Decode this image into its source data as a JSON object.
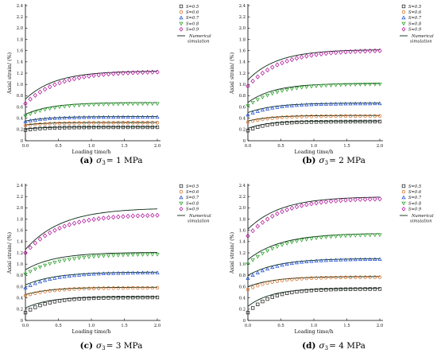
{
  "chart_data": [
    {
      "type": "scatter",
      "caption": {
        "letter": "(a)",
        "symbol": "σ",
        "subscript": "3",
        "equals": "= 1 MPa"
      },
      "xlabel": "Loading time/h",
      "ylabel": "Axial strain/ (%)",
      "xlim": [
        0,
        2.0
      ],
      "ylim": [
        0,
        2.4
      ],
      "xticks": [
        "0.0",
        "0.5",
        "1.0",
        "1.5",
        "2.0"
      ],
      "yticks": [
        "0",
        "0.2",
        "0.4",
        "0.6",
        "0.8",
        "1.0",
        "1.2",
        "1.4",
        "1.6",
        "1.8",
        "2.0",
        "2.2",
        "2.4"
      ],
      "legend": {
        "placement": "top-right",
        "sim_label_line1": "Numerical",
        "sim_label_line2": "simulation"
      },
      "series": [
        {
          "name": "S=0.5",
          "marker": "square",
          "color": "#222222",
          "experimental": {
            "start": 0.19,
            "end": 0.24,
            "tau": 0.3
          },
          "simulation": {
            "start": 0.21,
            "end": 0.245,
            "tau": 0.3
          }
        },
        {
          "name": "S=0.6",
          "marker": "circle",
          "color": "#d2691e",
          "experimental": {
            "start": 0.27,
            "end": 0.32,
            "tau": 0.3
          },
          "simulation": {
            "start": 0.28,
            "end": 0.325,
            "tau": 0.3
          }
        },
        {
          "name": "S=0.7",
          "marker": "triangle-up",
          "color": "#2050d0",
          "experimental": {
            "start": 0.34,
            "end": 0.42,
            "tau": 0.35
          },
          "simulation": {
            "start": 0.35,
            "end": 0.43,
            "tau": 0.35
          }
        },
        {
          "name": "S=0.8",
          "marker": "triangle-down",
          "color": "#28a028",
          "experimental": {
            "start": 0.44,
            "end": 0.66,
            "tau": 0.4
          },
          "simulation": {
            "start": 0.47,
            "end": 0.68,
            "tau": 0.4
          }
        },
        {
          "name": "S=0.9",
          "marker": "diamond",
          "color": "#b0139a",
          "experimental": {
            "start": 0.66,
            "end": 1.23,
            "tau": 0.5
          },
          "simulation": {
            "start": 0.74,
            "end": 1.24,
            "tau": 0.45
          }
        }
      ]
    },
    {
      "type": "scatter",
      "caption": {
        "letter": "(b)",
        "symbol": "σ",
        "subscript": "3",
        "equals": "= 2 MPa"
      },
      "xlabel": "Loading time/h",
      "ylabel": "Axial strain/ (%)",
      "xlim": [
        0,
        2.0
      ],
      "ylim": [
        0,
        2.4
      ],
      "xticks": [
        "0.0",
        "0.5",
        "1.0",
        "1.5",
        "2.0"
      ],
      "yticks": [
        "0",
        "0.2",
        "0.4",
        "0.6",
        "0.8",
        "1.0",
        "1.2",
        "1.4",
        "1.6",
        "1.8",
        "2.0",
        "2.2",
        "2.4"
      ],
      "legend": {
        "placement": "top-right",
        "sim_label_line1": "Numerical",
        "sim_label_line2": "simulation"
      },
      "series": [
        {
          "name": "S=0.5",
          "marker": "square",
          "color": "#222222",
          "experimental": {
            "start": 0.18,
            "end": 0.34,
            "tau": 0.3
          },
          "simulation": {
            "start": 0.22,
            "end": 0.35,
            "tau": 0.3
          }
        },
        {
          "name": "S=0.6",
          "marker": "circle",
          "color": "#d2691e",
          "experimental": {
            "start": 0.33,
            "end": 0.44,
            "tau": 0.35
          },
          "simulation": {
            "start": 0.35,
            "end": 0.45,
            "tau": 0.35
          }
        },
        {
          "name": "S=0.7",
          "marker": "triangle-up",
          "color": "#2050d0",
          "experimental": {
            "start": 0.46,
            "end": 0.66,
            "tau": 0.4
          },
          "simulation": {
            "start": 0.5,
            "end": 0.67,
            "tau": 0.4
          }
        },
        {
          "name": "S=0.8",
          "marker": "triangle-down",
          "color": "#28a028",
          "experimental": {
            "start": 0.62,
            "end": 1.01,
            "tau": 0.45
          },
          "simulation": {
            "start": 0.68,
            "end": 1.02,
            "tau": 0.4
          }
        },
        {
          "name": "S=0.9",
          "marker": "diamond",
          "color": "#b0139a",
          "experimental": {
            "start": 0.97,
            "end": 1.61,
            "tau": 0.5
          },
          "simulation": {
            "start": 1.08,
            "end": 1.62,
            "tau": 0.45
          }
        }
      ]
    },
    {
      "type": "scatter",
      "caption": {
        "letter": "(c)",
        "symbol": "σ",
        "subscript": "3",
        "equals": "= 3 MPa"
      },
      "xlabel": "Loading time/h",
      "ylabel": "Axial strain/ (%)",
      "xlim": [
        0,
        2.0
      ],
      "ylim": [
        0,
        2.4
      ],
      "xticks": [
        "0.0",
        "0.5",
        "1.0",
        "1.5",
        "2.0"
      ],
      "yticks": [
        "0",
        "0.2",
        "0.4",
        "0.6",
        "0.8",
        "1.0",
        "1.2",
        "1.4",
        "1.6",
        "1.8",
        "2.0",
        "2.2",
        "2.4"
      ],
      "legend": {
        "placement": "top-right",
        "sim_label_line1": "Numerical",
        "sim_label_line2": "simulation"
      },
      "series": [
        {
          "name": "S=0.5",
          "marker": "square",
          "color": "#222222",
          "experimental": {
            "start": 0.14,
            "end": 0.41,
            "tau": 0.35
          },
          "simulation": {
            "start": 0.22,
            "end": 0.42,
            "tau": 0.35
          }
        },
        {
          "name": "S=0.6",
          "marker": "circle",
          "color": "#d2691e",
          "experimental": {
            "start": 0.44,
            "end": 0.58,
            "tau": 0.4
          },
          "simulation": {
            "start": 0.46,
            "end": 0.59,
            "tau": 0.4
          }
        },
        {
          "name": "S=0.7",
          "marker": "triangle-up",
          "color": "#2050d0",
          "experimental": {
            "start": 0.58,
            "end": 0.85,
            "tau": 0.45
          },
          "simulation": {
            "start": 0.63,
            "end": 0.86,
            "tau": 0.45
          }
        },
        {
          "name": "S=0.8",
          "marker": "triangle-down",
          "color": "#28a028",
          "experimental": {
            "start": 0.82,
            "end": 1.18,
            "tau": 0.5
          },
          "simulation": {
            "start": 0.9,
            "end": 1.21,
            "tau": 0.45
          }
        },
        {
          "name": "S=0.9",
          "marker": "diamond",
          "color": "#b0139a",
          "experimental": {
            "start": 1.2,
            "end": 1.88,
            "tau": 0.5
          },
          "simulation": {
            "start": 1.26,
            "end": 2.0,
            "tau": 0.55
          }
        }
      ]
    },
    {
      "type": "scatter",
      "caption": {
        "letter": "(d)",
        "symbol": "σ",
        "subscript": "3",
        "equals": "= 4 MPa"
      },
      "xlabel": "Loading time/h",
      "ylabel": "Axial strain/ (%)",
      "xlim": [
        0,
        2.0
      ],
      "ylim": [
        0,
        2.4
      ],
      "xticks": [
        "0.0",
        "0.5",
        "1.0",
        "1.5",
        "2.0"
      ],
      "yticks": [
        "0",
        "0.2",
        "0.4",
        "0.6",
        "0.8",
        "1.0",
        "1.2",
        "1.4",
        "1.6",
        "1.8",
        "2.0",
        "2.2",
        "2.4"
      ],
      "legend": {
        "placement": "top-right",
        "sim_label_line1": "Numerical",
        "sim_label_line2": "simulation"
      },
      "series": [
        {
          "name": "S=0.5",
          "marker": "square",
          "color": "#222222",
          "experimental": {
            "start": 0.14,
            "end": 0.56,
            "tau": 0.35
          },
          "simulation": {
            "start": 0.25,
            "end": 0.57,
            "tau": 0.35
          }
        },
        {
          "name": "S=0.6",
          "marker": "circle",
          "color": "#d2691e",
          "experimental": {
            "start": 0.55,
            "end": 0.77,
            "tau": 0.4
          },
          "simulation": {
            "start": 0.6,
            "end": 0.78,
            "tau": 0.4
          }
        },
        {
          "name": "S=0.7",
          "marker": "triangle-up",
          "color": "#2050d0",
          "experimental": {
            "start": 0.75,
            "end": 1.09,
            "tau": 0.45
          },
          "simulation": {
            "start": 0.8,
            "end": 1.1,
            "tau": 0.45
          }
        },
        {
          "name": "S=0.8",
          "marker": "triangle-down",
          "color": "#28a028",
          "experimental": {
            "start": 1.0,
            "end": 1.53,
            "tau": 0.5
          },
          "simulation": {
            "start": 1.08,
            "end": 1.55,
            "tau": 0.5
          }
        },
        {
          "name": "S=0.9",
          "marker": "diamond",
          "color": "#b0139a",
          "experimental": {
            "start": 1.5,
            "end": 2.17,
            "tau": 0.5
          },
          "simulation": {
            "start": 1.62,
            "end": 2.2,
            "tau": 0.5
          }
        }
      ]
    }
  ]
}
